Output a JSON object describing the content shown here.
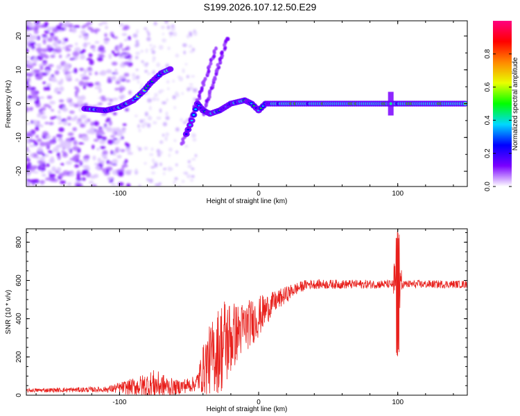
{
  "title": "S199.2026.107.12.50.E29",
  "chart_data": [
    {
      "type": "heatmap",
      "name": "spectrogram",
      "xlabel": "Height of straight line (km)",
      "ylabel": "Frequency (Hz)",
      "xlim": [
        -167,
        150
      ],
      "ylim": [
        -24.5,
        24.5
      ],
      "xticks": [
        -100,
        0,
        100
      ],
      "yticks": [
        -20,
        -10,
        0,
        10,
        20
      ],
      "colorbar": {
        "label": "Normalized spectral amplitude",
        "range": [
          0,
          1
        ],
        "ticks": [
          "0.0",
          "0.2",
          "0.4",
          "0.6",
          "0.8"
        ],
        "tick_values": [
          0,
          0.2,
          0.4,
          0.6,
          0.8
        ],
        "colors": [
          "#ffffff",
          "#7a00ff",
          "#0000ff",
          "#00d8ff",
          "#00ff00",
          "#e8ff00",
          "#ff8800",
          "#ff0000",
          "#ff0080"
        ]
      },
      "ridge": [
        {
          "x": -125,
          "f": -1.5
        },
        {
          "x": -110,
          "f": -2
        },
        {
          "x": -100,
          "f": -1
        },
        {
          "x": -90,
          "f": 1
        },
        {
          "x": -82,
          "f": 4
        },
        {
          "x": -78,
          "f": 6
        },
        {
          "x": -70,
          "f": 9
        },
        {
          "x": -62,
          "f": 10.5
        },
        {
          "x": -52,
          "f": -9
        },
        {
          "x": -48,
          "f": -5
        },
        {
          "x": -44,
          "f": 0
        },
        {
          "x": -40,
          "f": -2
        },
        {
          "x": -35,
          "f": -3
        },
        {
          "x": -28,
          "f": -2
        },
        {
          "x": -20,
          "f": 0
        },
        {
          "x": -10,
          "f": 1
        },
        {
          "x": -5,
          "f": 0
        },
        {
          "x": 0,
          "f": -2
        },
        {
          "x": 5,
          "f": 0
        },
        {
          "x": 10,
          "f": 0
        },
        {
          "x": 30,
          "f": 0
        },
        {
          "x": 60,
          "f": 0
        },
        {
          "x": 90,
          "f": 0
        },
        {
          "x": 100,
          "f": 0
        },
        {
          "x": 130,
          "f": 0
        },
        {
          "x": 150,
          "f": 0
        }
      ],
      "streaks": [
        {
          "x1": -40,
          "f1": -3,
          "x2": -22,
          "f2": 20
        },
        {
          "x1": -55,
          "f1": -12,
          "x2": -30,
          "f2": 17
        }
      ]
    },
    {
      "type": "line",
      "name": "snr",
      "xlabel": "Height of straight line (km)",
      "ylabel": "SNR (10 * v/v)",
      "xlim": [
        -167,
        150
      ],
      "ylim": [
        0,
        870
      ],
      "xticks": [
        -100,
        0,
        100
      ],
      "yticks": [
        0,
        200,
        400,
        600,
        800
      ],
      "color": "#e8201c",
      "envelope": [
        {
          "x": -167,
          "mean": 25,
          "amp": 10
        },
        {
          "x": -110,
          "mean": 30,
          "amp": 15
        },
        {
          "x": -90,
          "mean": 45,
          "amp": 45
        },
        {
          "x": -75,
          "mean": 55,
          "amp": 80
        },
        {
          "x": -60,
          "mean": 40,
          "amp": 40
        },
        {
          "x": -45,
          "mean": 60,
          "amp": 40
        },
        {
          "x": -38,
          "mean": 160,
          "amp": 160
        },
        {
          "x": -25,
          "mean": 270,
          "amp": 260
        },
        {
          "x": -15,
          "mean": 330,
          "amp": 150
        },
        {
          "x": 0,
          "mean": 410,
          "amp": 110
        },
        {
          "x": 10,
          "mean": 480,
          "amp": 60
        },
        {
          "x": 25,
          "mean": 550,
          "amp": 35
        },
        {
          "x": 35,
          "mean": 580,
          "amp": 25
        },
        {
          "x": 150,
          "mean": 580,
          "amp": 20
        }
      ],
      "spike": {
        "x": 100,
        "max": 860,
        "min": 200
      }
    }
  ]
}
